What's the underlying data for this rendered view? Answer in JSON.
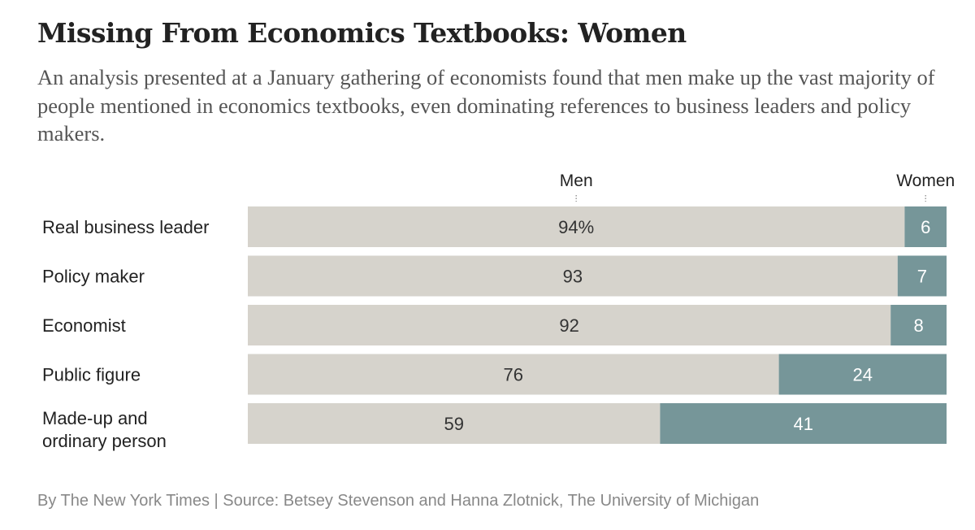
{
  "title": "Missing From Economics Textbooks: Women",
  "subtitle": "An analysis presented at a January gathering of economists found that men make up the vast majority of people mentioned in economics textbooks, even dominating references to business leaders and policy makers.",
  "source": "By The New York Times | Source: Betsey Stevenson and Hanna Zlotnick, The University of Michigan",
  "colors": {
    "men": "#d6d3cc",
    "women": "#769699",
    "text": "#222222"
  },
  "chart_data": {
    "type": "bar",
    "stacked": true,
    "orientation": "horizontal",
    "unit": "percent",
    "xlim": [
      0,
      100
    ],
    "header_labels": [
      "Men",
      "Women"
    ],
    "categories": [
      [
        "Real business leader"
      ],
      [
        "Policy maker"
      ],
      [
        "Economist"
      ],
      [
        "Public figure"
      ],
      [
        "Made-up and",
        "ordinary person"
      ]
    ],
    "series": [
      {
        "name": "Men",
        "values": [
          94,
          93,
          92,
          76,
          59
        ],
        "labels": [
          "94%",
          "93",
          "92",
          "76",
          "59"
        ]
      },
      {
        "name": "Women",
        "values": [
          6,
          7,
          8,
          24,
          41
        ],
        "labels": [
          "6",
          "7",
          "8",
          "24",
          "41"
        ]
      }
    ]
  }
}
